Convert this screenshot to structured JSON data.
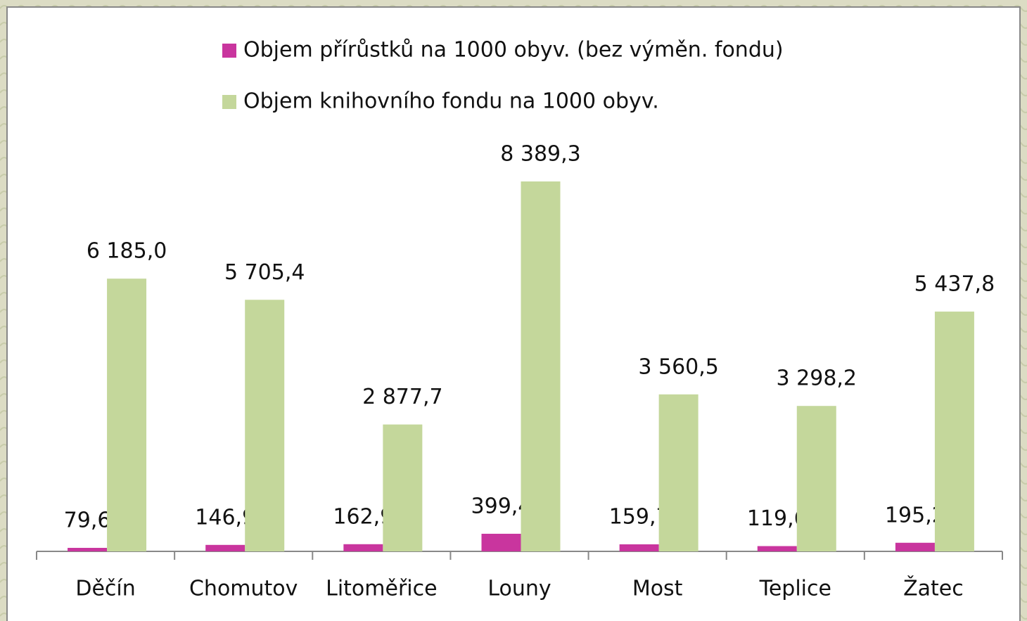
{
  "chart_data": {
    "type": "bar",
    "categories": [
      "Děčín",
      "Chomutov",
      "Litoměřice",
      "Louny",
      "Most",
      "Teplice",
      "Žatec"
    ],
    "series": [
      {
        "name": "Objem přírůstků na 1000 obyv. (bez výměn. fondu)",
        "color": "#c9359e",
        "values": [
          79.6,
          146.9,
          162.9,
          399.4,
          159.7,
          119.6,
          195.2
        ],
        "value_labels": [
          "79,6",
          "146,9",
          "162,9",
          "399,4",
          "159,7",
          "119,6",
          "195,2"
        ]
      },
      {
        "name": "Objem knihovního fondu na 1000 obyv.",
        "color": "#c4d79b",
        "values": [
          6185.0,
          5705.4,
          2877.7,
          8389.3,
          3560.5,
          3298.2,
          5437.8
        ],
        "value_labels": [
          "6 185,0",
          "5 705,4",
          "2 877,7",
          "8 389,3",
          "3 560,5",
          "3 298,2",
          "5 437,8"
        ]
      }
    ]
  }
}
